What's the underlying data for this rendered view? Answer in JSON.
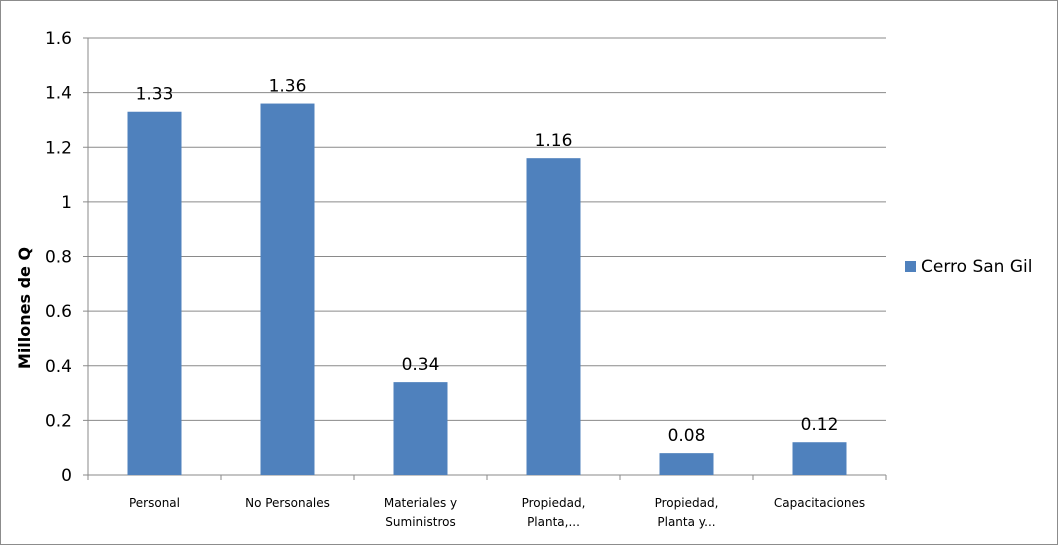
{
  "chart_data": {
    "type": "bar",
    "title": "",
    "xlabel": "",
    "ylabel": "Millones de Q",
    "ylim": [
      0,
      1.6
    ],
    "yticks": [
      "0",
      "0.2",
      "0.4",
      "0.6",
      "0.8",
      "1",
      "1.2",
      "1.4",
      "1.6"
    ],
    "grid": true,
    "legend_position": "right",
    "categories": [
      [
        "Personal"
      ],
      [
        "No Personales"
      ],
      [
        "Materiales y",
        "Suministros"
      ],
      [
        "Propiedad,",
        "Planta,..."
      ],
      [
        "Propiedad,",
        "Planta y..."
      ],
      [
        "Capacitaciones"
      ]
    ],
    "series": [
      {
        "name": "Cerro San Gil",
        "color": "#4f81bd",
        "values": [
          1.33,
          1.36,
          0.34,
          1.16,
          0.08,
          0.12
        ],
        "labels": [
          "1.33",
          "1.36",
          "0.34",
          "1.16",
          "0.08",
          "0.12"
        ]
      }
    ]
  }
}
